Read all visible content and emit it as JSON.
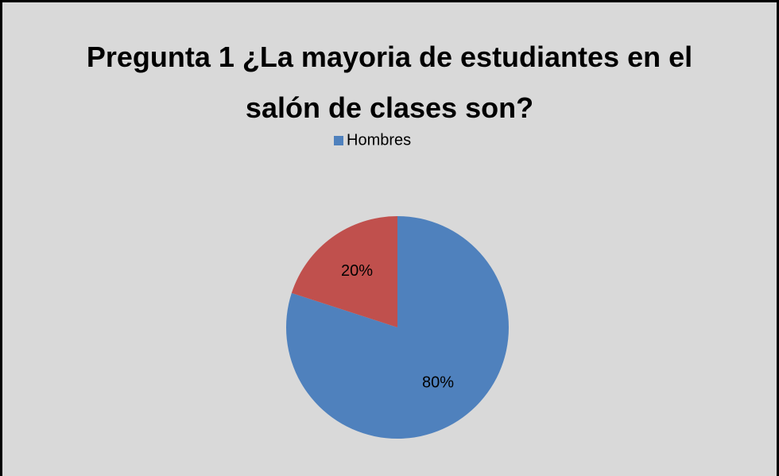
{
  "chart_data": {
    "type": "pie",
    "title": "Pregunta 1 ¿La mayoria de estudiantes en el salón de clases son?",
    "categories": [
      "Hombres",
      null
    ],
    "values": [
      80,
      20
    ],
    "value_labels": [
      "80%",
      "20%"
    ],
    "colors": [
      "#4f81bd",
      "#c0504d"
    ],
    "legend": "top"
  }
}
